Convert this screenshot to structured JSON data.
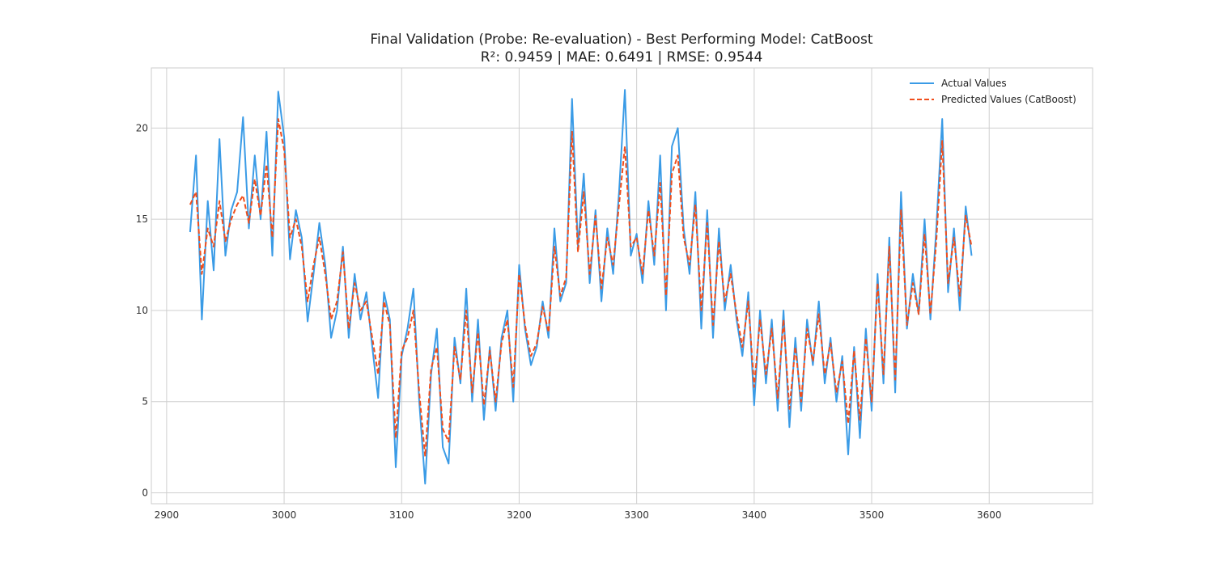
{
  "chart_data": {
    "type": "line",
    "title": "Final Validation (Probe: Re-evaluation) - Best Performing Model: CatBoost",
    "subtitle": "R²: 0.9459  |  MAE: 0.6491  |  RMSE: 0.9544",
    "xlabel": "",
    "ylabel": "",
    "xlim": [
      2887,
      3688
    ],
    "ylim": [
      -0.6,
      23.3
    ],
    "xticks": [
      2900,
      3000,
      3100,
      3200,
      3300,
      3400,
      3500,
      3600
    ],
    "yticks": [
      0,
      5,
      10,
      15,
      20
    ],
    "grid": true,
    "legend_position": "top-right",
    "x_start": 2920,
    "x_step": 5,
    "series": [
      {
        "name": "Actual Values",
        "color": "#3a9be6",
        "style": "solid",
        "values": [
          14.3,
          18.5,
          9.5,
          16.0,
          12.2,
          19.4,
          13.0,
          15.5,
          16.5,
          20.6,
          14.5,
          18.5,
          15.0,
          19.8,
          13.0,
          22.0,
          19.5,
          12.8,
          15.5,
          14.0,
          9.4,
          12.0,
          14.8,
          12.5,
          8.5,
          10.0,
          13.5,
          8.5,
          12.0,
          9.5,
          11.0,
          8.0,
          5.2,
          11.0,
          9.5,
          1.4,
          7.5,
          9.0,
          11.2,
          5.0,
          0.5,
          6.5,
          9.0,
          2.5,
          1.6,
          8.5,
          6.0,
          11.2,
          5.0,
          9.5,
          4.0,
          8.0,
          4.5,
          8.5,
          10.0,
          5.0,
          12.5,
          9.0,
          7.0,
          8.0,
          10.5,
          8.5,
          14.5,
          10.5,
          11.5,
          21.6,
          13.5,
          17.5,
          11.5,
          15.5,
          10.5,
          14.5,
          12.0,
          16.5,
          22.1,
          13.0,
          14.2,
          11.5,
          16.0,
          12.5,
          18.5,
          10.0,
          19.0,
          20.0,
          14.5,
          12.0,
          16.5,
          9.0,
          15.5,
          8.5,
          14.5,
          10.0,
          12.5,
          9.5,
          7.5,
          11.0,
          4.8,
          10.0,
          6.0,
          9.5,
          4.5,
          10.0,
          3.6,
          8.5,
          4.5,
          9.5,
          7.0,
          10.5,
          6.0,
          8.5,
          5.0,
          7.5,
          2.1,
          8.0,
          3.0,
          9.0,
          4.5,
          12.0,
          6.0,
          14.0,
          5.5,
          16.5,
          9.0,
          12.0,
          9.8,
          15.0,
          9.5,
          14.5,
          20.5,
          11.0,
          14.5,
          10.0,
          15.7,
          13.0
        ]
      },
      {
        "name": "Predicted Values (CatBoost)",
        "color": "#f04e1c",
        "style": "dashed",
        "values": [
          15.8,
          16.5,
          12.0,
          14.5,
          13.5,
          16.0,
          13.8,
          15.0,
          15.8,
          16.3,
          14.8,
          17.2,
          15.2,
          18.0,
          14.0,
          20.5,
          18.8,
          14.0,
          15.0,
          13.5,
          10.5,
          12.5,
          14.0,
          12.0,
          9.5,
          10.5,
          13.2,
          9.0,
          11.5,
          10.0,
          10.5,
          8.5,
          6.5,
          10.5,
          9.2,
          3.0,
          7.8,
          8.5,
          10.0,
          5.5,
          2.0,
          6.8,
          8.0,
          3.5,
          2.8,
          8.0,
          6.2,
          10.0,
          5.5,
          8.8,
          4.8,
          7.8,
          5.0,
          8.2,
          9.5,
          5.8,
          12.0,
          9.2,
          7.5,
          8.2,
          10.2,
          8.8,
          13.5,
          10.8,
          11.8,
          19.8,
          13.2,
          16.5,
          12.0,
          15.2,
          11.2,
          14.0,
          12.5,
          15.8,
          19.0,
          13.5,
          14.0,
          12.0,
          15.5,
          13.0,
          17.0,
          10.8,
          17.5,
          18.5,
          14.0,
          12.5,
          15.8,
          10.0,
          14.8,
          9.2,
          13.8,
          10.5,
          12.0,
          9.8,
          8.0,
          10.5,
          5.8,
          9.5,
          6.5,
          9.0,
          5.2,
          9.5,
          4.6,
          8.0,
          5.0,
          9.0,
          7.2,
          9.8,
          6.5,
          8.2,
          5.5,
          7.2,
          3.8,
          7.8,
          4.0,
          8.5,
          5.0,
          11.5,
          6.5,
          13.5,
          6.2,
          15.5,
          9.2,
          11.5,
          9.8,
          14.2,
          9.8,
          13.8,
          19.3,
          11.5,
          14.0,
          10.8,
          15.2,
          13.5
        ]
      }
    ]
  }
}
